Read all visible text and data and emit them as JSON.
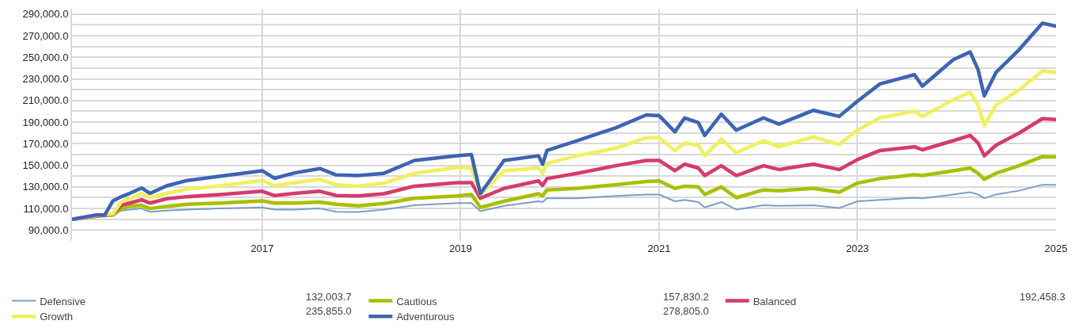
{
  "chart_data": {
    "type": "line",
    "x": [
      "2015-02-01",
      "2015-05-01",
      "2015-06-01",
      "2015-07-01",
      "2015-08-01",
      "2015-09-01",
      "2015-10-15",
      "2015-11-15",
      "2016-01-15",
      "2016-04-01",
      "2016-08-01",
      "2017-01-01",
      "2017-02-15",
      "2017-05-01",
      "2017-08-01",
      "2017-10-01",
      "2017-12-20",
      "2018-03-25",
      "2018-07-15",
      "2018-12-20",
      "2019-02-10",
      "2019-03-15",
      "2019-06-10",
      "2019-10-15",
      "2019-10-30",
      "2019-11-15",
      "2020-03-05",
      "2020-07-25",
      "2020-11-15",
      "2021-01-01",
      "2021-02-28",
      "2021-04-05",
      "2021-05-25",
      "2021-06-18",
      "2021-08-18",
      "2021-10-12",
      "2022-01-20",
      "2022-03-18",
      "2022-07-23",
      "2022-10-26",
      "2023-01-01",
      "2023-03-25",
      "2023-07-30",
      "2023-08-28",
      "2023-12-20",
      "2024-02-20",
      "2024-03-20",
      "2024-04-12",
      "2024-05-25",
      "2024-08-18",
      "2024-11-12",
      "2025-01-01"
    ],
    "series": [
      {
        "name": "Defensive",
        "color": "#7f9cc4",
        "values": [
          100000,
          103000,
          103500,
          104000,
          108000,
          109000,
          110000,
          107000,
          108000,
          109000,
          110000,
          111000,
          109000,
          109000,
          110000,
          107000,
          106800,
          109000,
          113000,
          115000,
          115000,
          107500,
          112400,
          116700,
          116000,
          119500,
          119500,
          121600,
          123000,
          123000,
          116700,
          118000,
          116000,
          111000,
          116000,
          109000,
          113000,
          112400,
          113000,
          110400,
          116700,
          118000,
          120000,
          119500,
          123000,
          125100,
          123000,
          119500,
          123000,
          126500,
          132000,
          132003.7
        ]
      },
      {
        "name": "Cautious",
        "color": "#a8c000",
        "values": [
          100000,
          103000,
          103500,
          104000,
          110000,
          112000,
          113000,
          110000,
          112000,
          114000,
          115000,
          117000,
          115000,
          115000,
          116000,
          114000,
          112400,
          114600,
          119500,
          121600,
          123000,
          111000,
          116700,
          123700,
          121600,
          127200,
          128600,
          132000,
          135000,
          135600,
          128600,
          130700,
          130000,
          123000,
          130000,
          120000,
          127200,
          126500,
          128600,
          125100,
          133500,
          137700,
          141200,
          140500,
          145000,
          147500,
          142600,
          137000,
          142600,
          149600,
          158000,
          157830.2
        ]
      },
      {
        "name": "Balanced",
        "color": "#d63a6e",
        "values": [
          100000,
          103000,
          104000,
          104500,
          113000,
          115000,
          118000,
          115000,
          119000,
          121000,
          123000,
          126000,
          122000,
          124000,
          126000,
          122000,
          121600,
          123700,
          130700,
          134000,
          134000,
          119500,
          128600,
          135600,
          131400,
          137700,
          142600,
          149600,
          154500,
          154500,
          145000,
          151000,
          147500,
          140500,
          149600,
          140500,
          149600,
          146100,
          151000,
          146100,
          155300,
          163700,
          167200,
          164400,
          172800,
          177700,
          170700,
          158800,
          168600,
          179800,
          193200,
          192458.3
        ]
      },
      {
        "name": "Growth",
        "color": "#f0f060",
        "values": [
          100000,
          103500,
          104500,
          105000,
          116000,
          119000,
          124000,
          120000,
          124000,
          128000,
          131000,
          136000,
          131000,
          134000,
          137000,
          132000,
          130700,
          133500,
          142600,
          148000,
          147500,
          123000,
          145000,
          147500,
          142600,
          151800,
          158800,
          165800,
          175600,
          175600,
          163700,
          170700,
          168600,
          158800,
          174200,
          161600,
          172800,
          167200,
          176300,
          169300,
          182600,
          193900,
          200200,
          195300,
          210700,
          217700,
          205800,
          186800,
          205800,
          219800,
          237400,
          235855.0
        ]
      },
      {
        "name": "Adventurous",
        "color": "#3d64b4",
        "values": [
          100000,
          104000,
          104000,
          117000,
          121000,
          124000,
          129000,
          124000,
          131000,
          136000,
          140000,
          145000,
          138000,
          143000,
          147000,
          141000,
          140500,
          142600,
          154500,
          158800,
          160000,
          123700,
          154500,
          158800,
          151000,
          163700,
          172800,
          184700,
          196700,
          196000,
          181000,
          193900,
          189600,
          177700,
          197400,
          182600,
          193900,
          188200,
          200900,
          195300,
          209300,
          225400,
          233900,
          223300,
          247900,
          254900,
          238800,
          214200,
          236000,
          257000,
          281600,
          278805.0
        ]
      }
    ],
    "xlim": [
      "2015-02-01",
      "2025-01-01"
    ],
    "xticks": [
      {
        "value": "2017-01-01",
        "label": "2017"
      },
      {
        "value": "2019-01-01",
        "label": "2019"
      },
      {
        "value": "2021-01-01",
        "label": "2021"
      },
      {
        "value": "2023-01-01",
        "label": "2023"
      },
      {
        "value": "2025-01-01",
        "label": "2025"
      }
    ],
    "ylim": [
      80000,
      295000
    ],
    "yticks": [
      {
        "value": 90000,
        "label": "90,000.0"
      },
      {
        "value": 100000,
        "label": null
      },
      {
        "value": 110000,
        "label": "110,000.0"
      },
      {
        "value": 120000,
        "label": null
      },
      {
        "value": 130000,
        "label": "130,000.0"
      },
      {
        "value": 140000,
        "label": null
      },
      {
        "value": 150000,
        "label": "150,000.0"
      },
      {
        "value": 160000,
        "label": null
      },
      {
        "value": 170000,
        "label": "170,000.0"
      },
      {
        "value": 180000,
        "label": null
      },
      {
        "value": 190000,
        "label": "190,000.0"
      },
      {
        "value": 200000,
        "label": null
      },
      {
        "value": 210000,
        "label": "210,000.0"
      },
      {
        "value": 220000,
        "label": null
      },
      {
        "value": 230000,
        "label": "230,000.0"
      },
      {
        "value": 240000,
        "label": null
      },
      {
        "value": 250000,
        "label": "250,000.0"
      },
      {
        "value": 260000,
        "label": null
      },
      {
        "value": 270000,
        "label": "270,000.0"
      },
      {
        "value": 280000,
        "label": null
      },
      {
        "value": 290000,
        "label": "290,000.0"
      }
    ],
    "annotations": [
      "132,003.7",
      "157,830.2",
      "192,458.3",
      "235,855.0",
      "278,805.0"
    ],
    "grid": true,
    "legend": "bottom",
    "marker": "none",
    "line_style": "solid"
  }
}
